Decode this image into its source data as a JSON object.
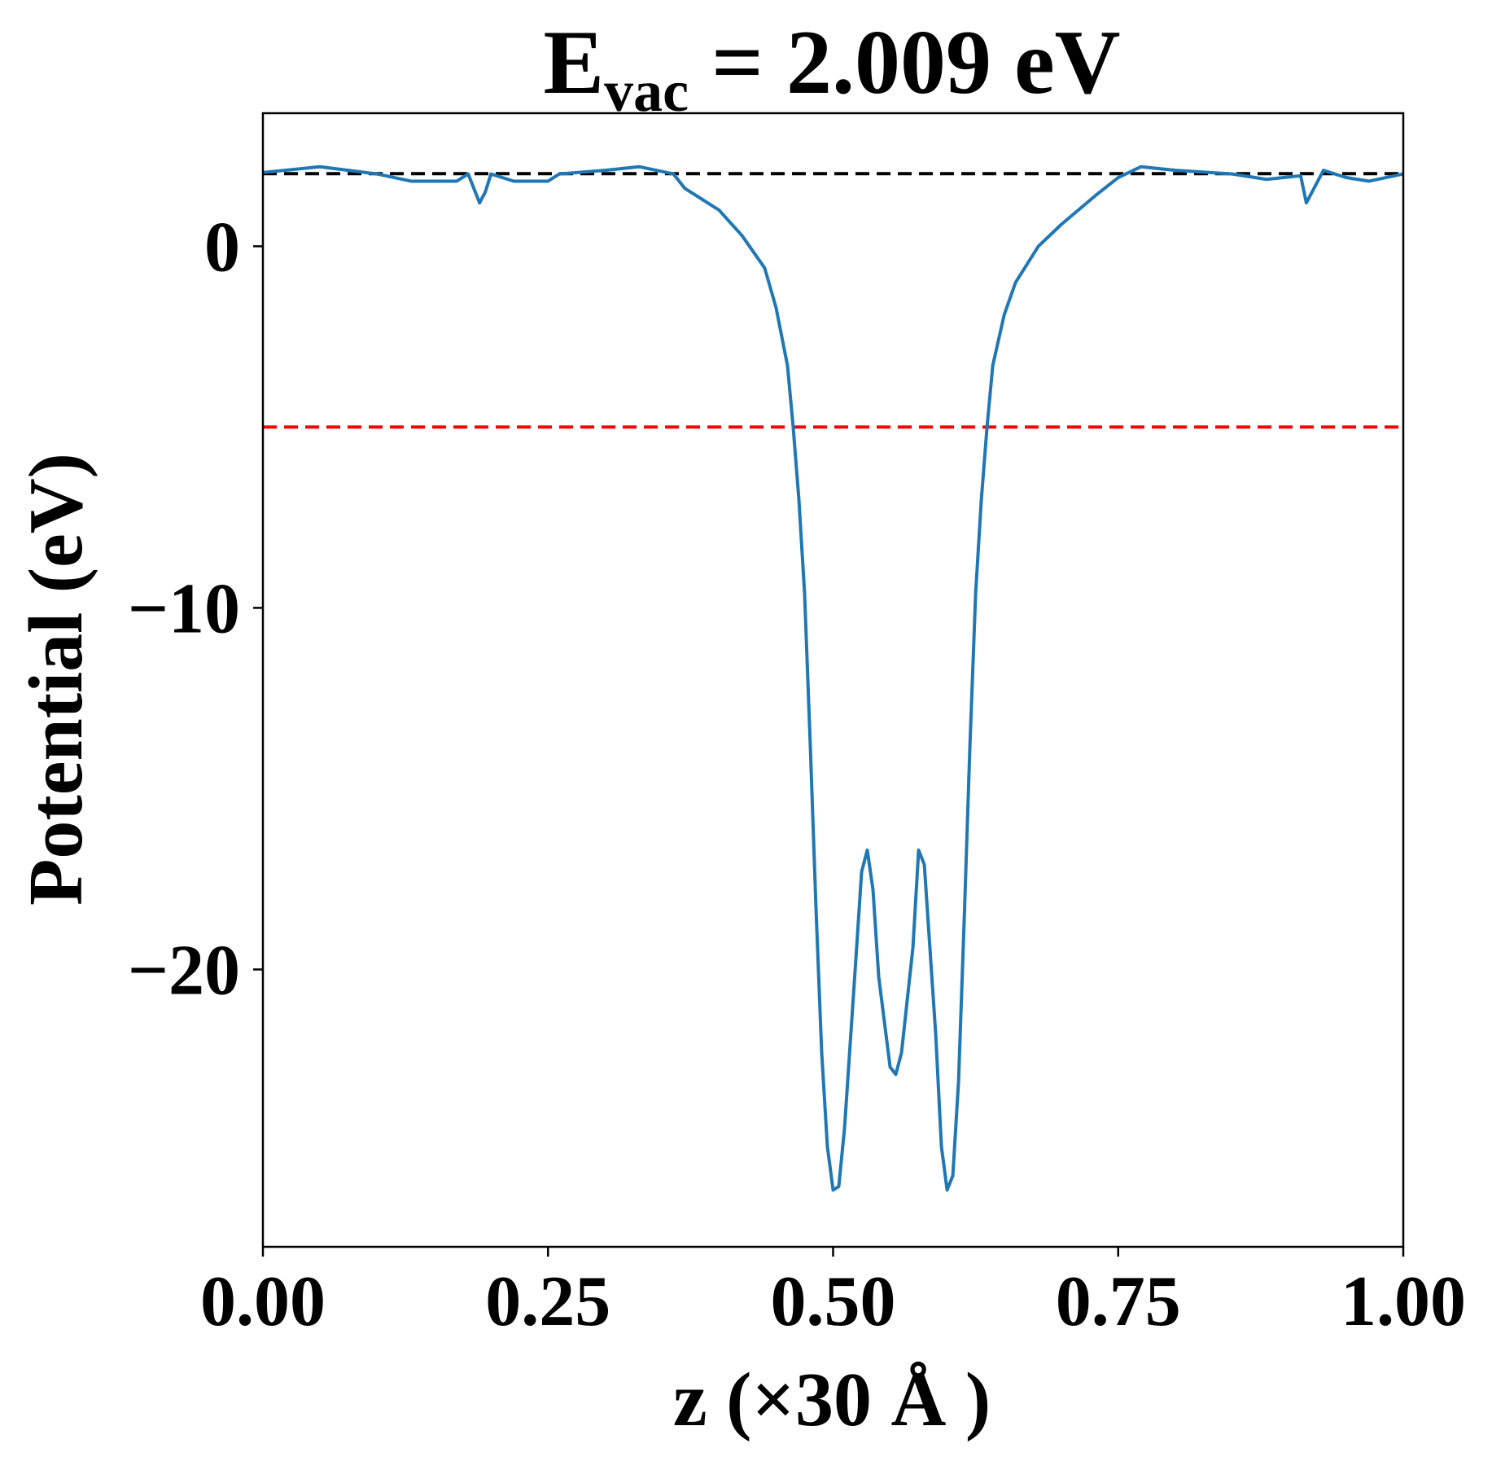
{
  "chart_data": {
    "type": "line",
    "title": {
      "main": "E",
      "sub": "vac",
      "rest": " = 2.009 eV"
    },
    "xlabel": "z (×30 Å )",
    "ylabel": "Potential (eV)",
    "x": [
      0,
      0.05,
      0.1,
      0.13,
      0.17,
      0.18,
      0.19,
      0.195,
      0.2,
      0.22,
      0.25,
      0.26,
      0.3,
      0.33,
      0.36,
      0.37,
      0.4,
      0.42,
      0.44,
      0.45,
      0.46,
      0.465,
      0.47,
      0.475,
      0.48,
      0.485,
      0.49,
      0.495,
      0.5,
      0.505,
      0.51,
      0.52,
      0.525,
      0.53,
      0.535,
      0.54,
      0.55,
      0.555,
      0.56,
      0.57,
      0.575,
      0.58,
      0.59,
      0.595,
      0.6,
      0.605,
      0.61,
      0.615,
      0.62,
      0.625,
      0.63,
      0.635,
      0.64,
      0.65,
      0.66,
      0.68,
      0.7,
      0.73,
      0.75,
      0.77,
      0.8,
      0.85,
      0.88,
      0.91,
      0.915,
      0.92,
      0.93,
      0.95,
      0.97,
      1.0
    ],
    "series": [
      {
        "name": "potential",
        "color": "#1f77b4",
        "values": [
          2.04,
          2.2,
          2.0,
          1.8,
          1.8,
          2.0,
          1.2,
          1.5,
          2.0,
          1.8,
          1.8,
          2.0,
          2.1,
          2.2,
          2.0,
          1.6,
          1.0,
          0.3,
          -0.6,
          -1.7,
          -3.3,
          -5.0,
          -7.0,
          -9.6,
          -13.8,
          -18.3,
          -22.3,
          -24.9,
          -26.1,
          -26.0,
          -24.4,
          -19.7,
          -17.3,
          -16.7,
          -17.8,
          -20.2,
          -22.7,
          -22.9,
          -22.3,
          -19.4,
          -16.7,
          -17.1,
          -21.8,
          -24.9,
          -26.1,
          -25.7,
          -23.1,
          -18.6,
          -13.8,
          -9.6,
          -7.0,
          -5.0,
          -3.3,
          -1.9,
          -1.0,
          0.0,
          0.6,
          1.4,
          1.9,
          2.2,
          2.1,
          2.0,
          1.85,
          1.95,
          1.2,
          1.5,
          2.1,
          1.9,
          1.8,
          2.0
        ]
      }
    ],
    "hlines": [
      {
        "value": 2.009,
        "color": "#000000"
      },
      {
        "value": -5.0,
        "color": "#ff0000"
      }
    ],
    "xlim": [
      0,
      1
    ],
    "ylim": [
      -27.67,
      3.68
    ],
    "xticks": [
      {
        "value": 0,
        "label": "0.00"
      },
      {
        "value": 0.25,
        "label": "0.25"
      },
      {
        "value": 0.5,
        "label": "0.50"
      },
      {
        "value": 0.75,
        "label": "0.75"
      },
      {
        "value": 1,
        "label": "1.00"
      }
    ],
    "yticks": [
      0,
      {
        "value": -10,
        "label": "−10"
      },
      {
        "value": -20,
        "label": "−20"
      }
    ]
  }
}
